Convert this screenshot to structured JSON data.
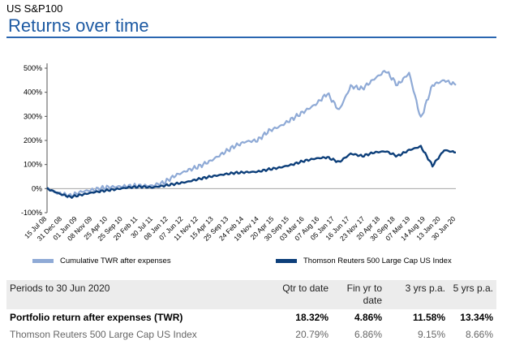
{
  "header": {
    "kicker": "US S&P100",
    "title": "Returns over time"
  },
  "chart_data": {
    "type": "line",
    "y_ticks": [
      "-100%",
      "0%",
      "100%",
      "200%",
      "300%",
      "400%",
      "500%"
    ],
    "ylim": [
      -100,
      500
    ],
    "x_tick_labels": [
      "15 Jul 08",
      "31 Dec 08",
      "01 Jun 09",
      "08 Nov 09",
      "25 Apr 10",
      "25 Sep 10",
      "20 Feb 11",
      "30 Jul 11",
      "08 Jan 12",
      "07 Jun 12",
      "11 Nov 12",
      "15 Apr 13",
      "25 Sep 13",
      "24 Feb 14",
      "19 Nov 14",
      "20 Apr 15",
      "30 Sep 15",
      "03 Mar 16",
      "07 Aug 16",
      "05 Jan 17",
      "16 Jun 17",
      "23 Nov 17",
      "20 Apr 18",
      "30 Sep 18",
      "07 Mar 19",
      "14 Aug 19",
      "13 Jan 20",
      "30 Jun 20"
    ],
    "grid": false,
    "legend_position": "bottom",
    "series": [
      {
        "name": "Cumulative TWR after expenses",
        "color": "#8faad6",
        "values": [
          0,
          -20,
          -30,
          -12,
          -5,
          5,
          8,
          10,
          12,
          12,
          25,
          55,
          75,
          92,
          115,
          145,
          175,
          195,
          200,
          240,
          260,
          290,
          320,
          350,
          395,
          325,
          425,
          415,
          455,
          490,
          430,
          480,
          290,
          430,
          450,
          430
        ]
      },
      {
        "name": "Thomson Reuters 500 Large Cap US Index",
        "color": "#0d3f7a",
        "values": [
          0,
          -20,
          -35,
          -25,
          -15,
          -8,
          -2,
          5,
          8,
          5,
          12,
          20,
          28,
          40,
          50,
          58,
          65,
          68,
          70,
          80,
          88,
          100,
          115,
          125,
          130,
          110,
          145,
          135,
          150,
          155,
          135,
          160,
          175,
          95,
          160,
          150
        ]
      }
    ]
  },
  "table": {
    "headers": [
      "Periods to 30 Jun 2020",
      "Qtr to date",
      "Fin yr to date",
      "3 yrs p.a.",
      "5 yrs p.a."
    ],
    "rows": [
      {
        "label": "Portfolio return after expenses (TWR)",
        "values": [
          "18.32%",
          "4.86%",
          "11.58%",
          "13.34%"
        ]
      },
      {
        "label": "Thomson Reuters 500 Large Cap US Index",
        "values": [
          "20.79%",
          "6.86%",
          "9.15%",
          "8.66%"
        ]
      }
    ]
  }
}
